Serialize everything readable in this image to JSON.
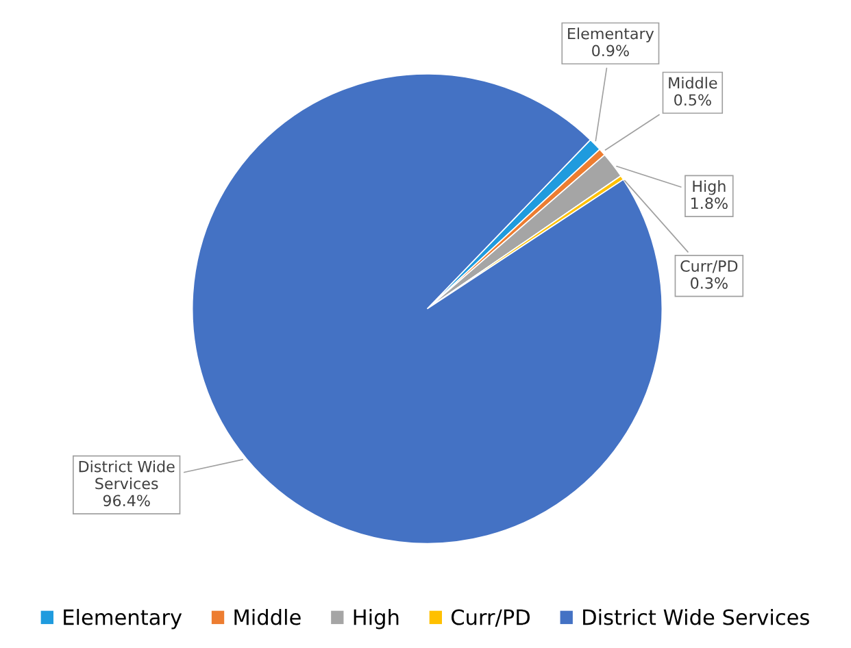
{
  "chart_data": {
    "type": "pie",
    "categories": [
      "Elementary",
      "Middle",
      "High",
      "Curr/PD",
      "District Wide Services"
    ],
    "values": [
      0.9,
      0.5,
      1.8,
      0.3,
      96.4
    ],
    "colors": [
      "#1f9bde",
      "#ed7d31",
      "#a5a5a5",
      "#ffc000",
      "#4472c4"
    ],
    "value_labels": [
      "0.9%",
      "0.5%",
      "1.8%",
      "0.3%",
      "96.4%"
    ],
    "legend": "bottom"
  }
}
